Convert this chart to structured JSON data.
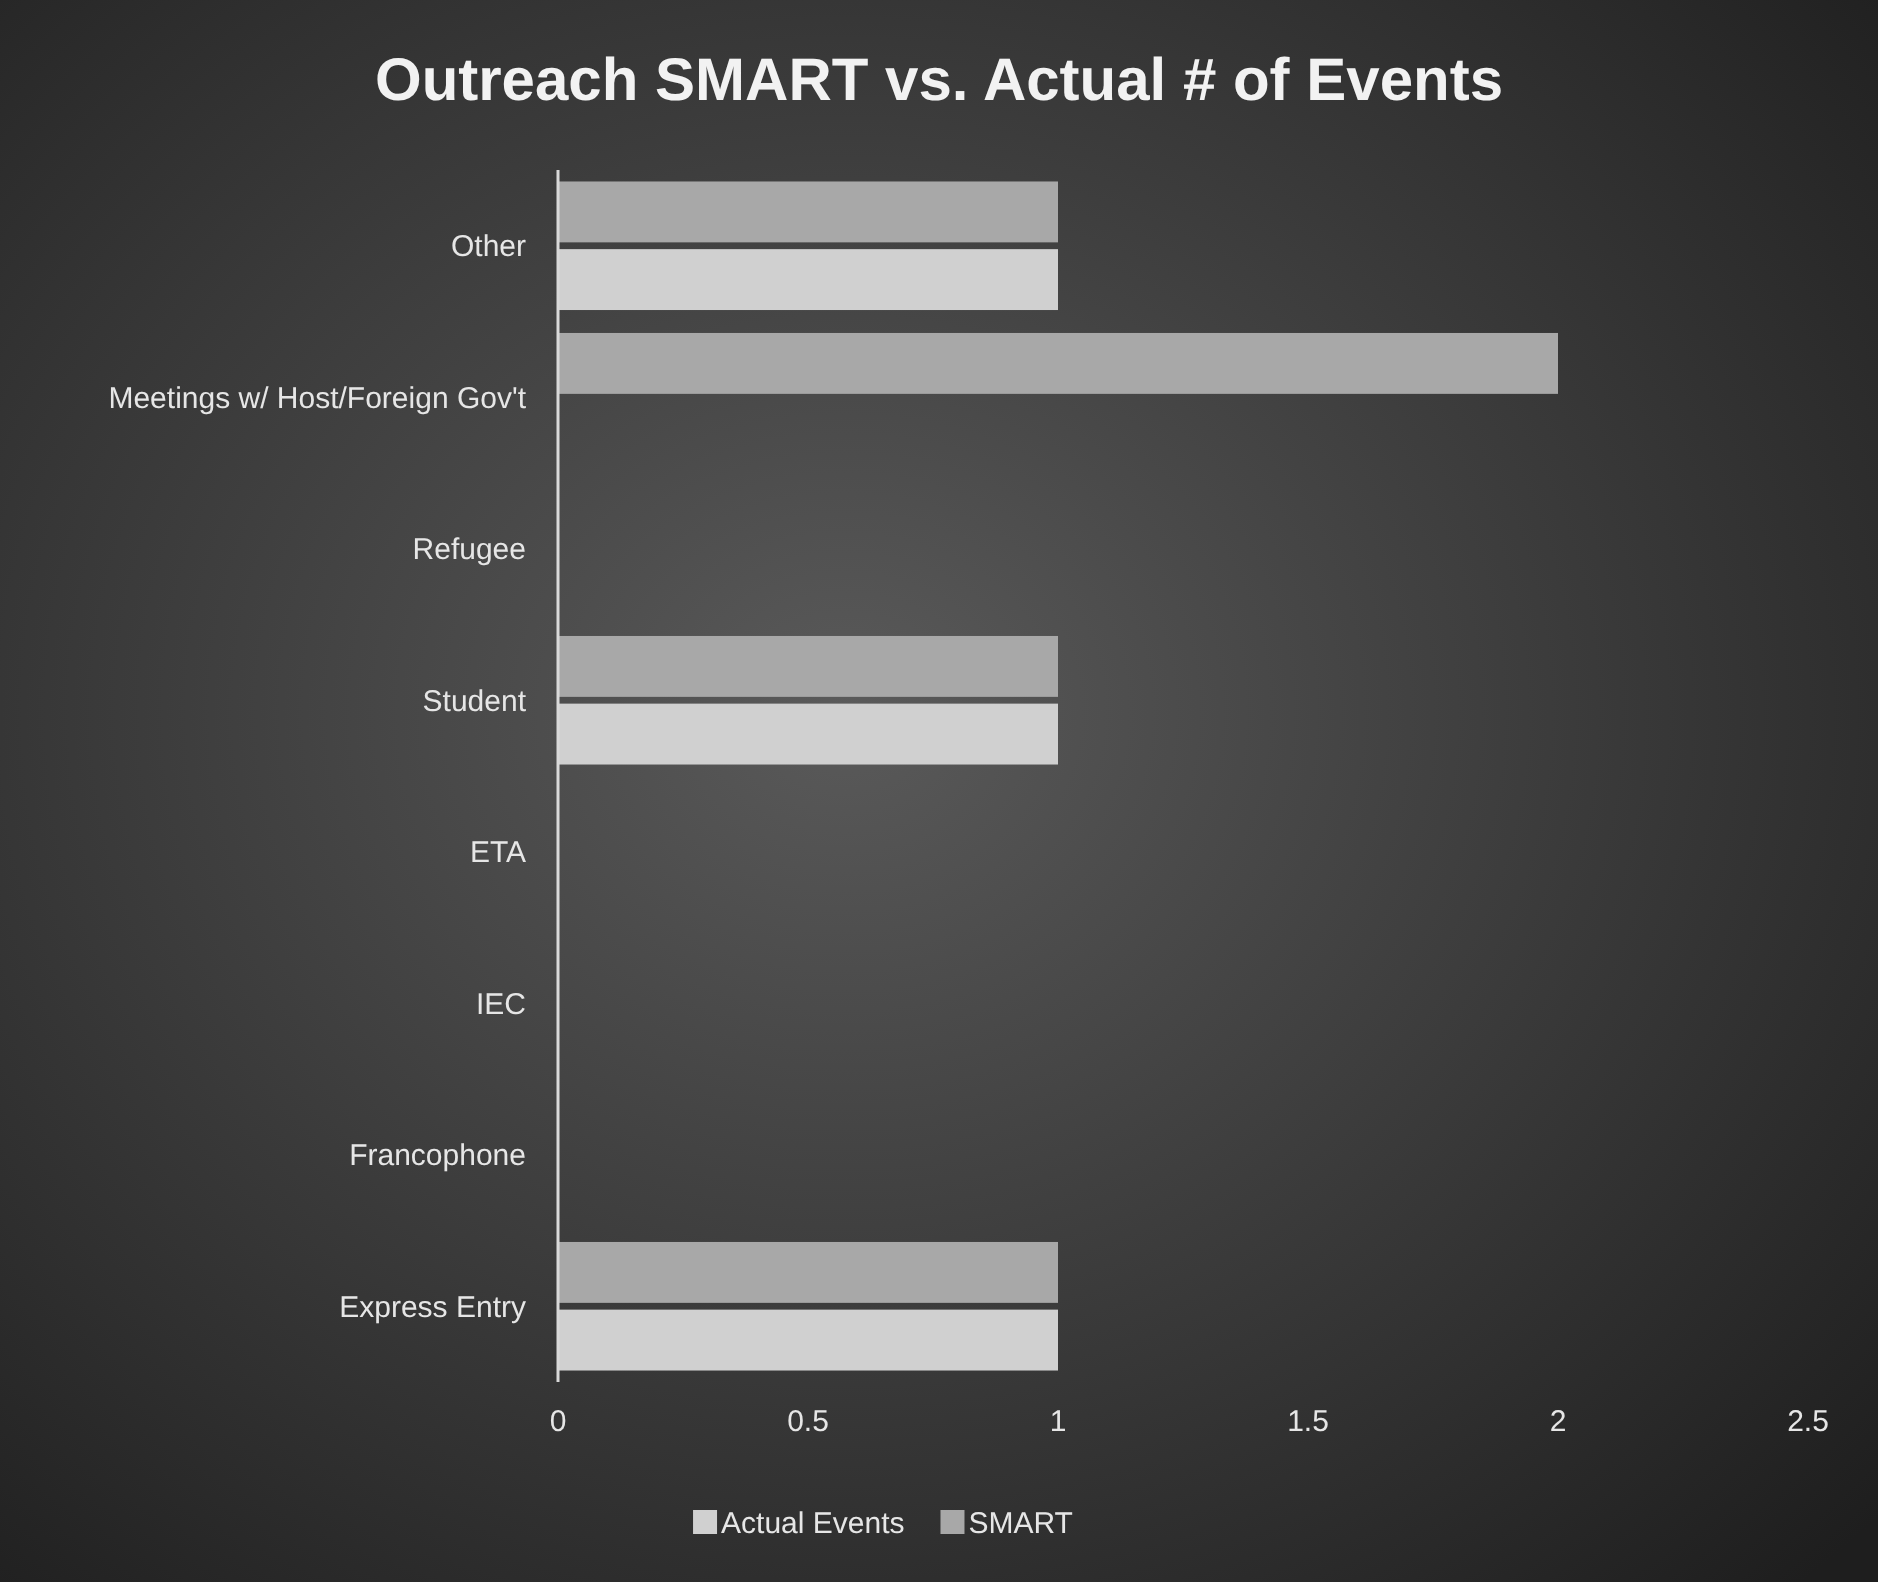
{
  "chart_data": {
    "type": "bar",
    "orientation": "horizontal",
    "title": "Outreach SMART vs. Actual # of Events",
    "categories": [
      "Other",
      "Meetings w/ Host/Foreign Gov't",
      "Refugee",
      "Student",
      "ETA",
      "IEC",
      "Francophone",
      "Express Entry"
    ],
    "series": [
      {
        "name": "Actual Events",
        "color": "#d0d0d0",
        "values": [
          1,
          0,
          0,
          1,
          0,
          0,
          0,
          1
        ]
      },
      {
        "name": "SMART",
        "color": "#a8a8a8",
        "values": [
          1,
          2,
          0,
          1,
          0,
          0,
          0,
          1
        ]
      }
    ],
    "xlim": [
      0,
      2.5
    ],
    "xticks": [
      0,
      0.5,
      1,
      1.5,
      2,
      2.5
    ],
    "grid": false,
    "legend": "bottom"
  }
}
